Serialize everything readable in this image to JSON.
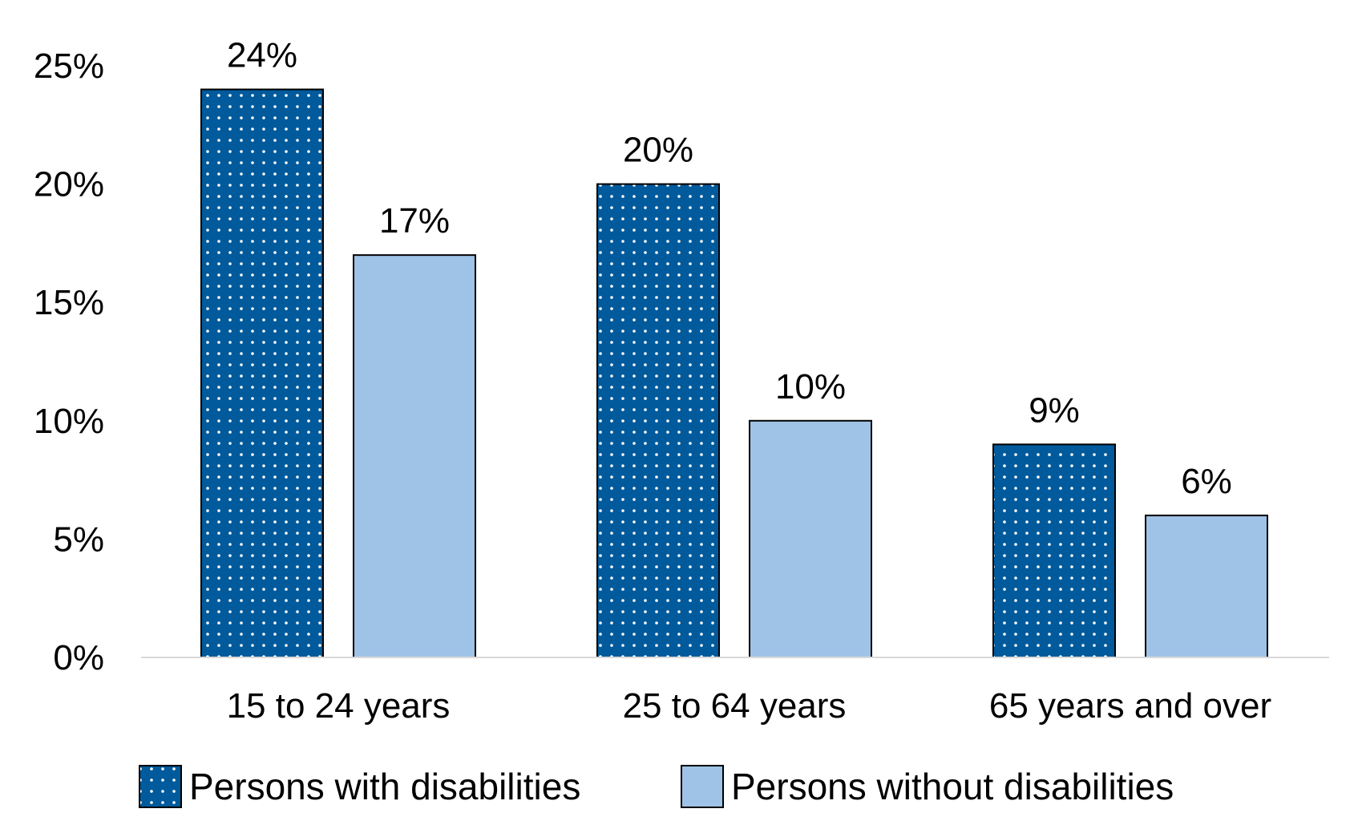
{
  "chart_data": {
    "type": "bar",
    "title": "",
    "xlabel": "",
    "ylabel": "",
    "ylim": [
      0,
      25
    ],
    "y_ticks": [
      0,
      5,
      10,
      15,
      20,
      25
    ],
    "y_tick_format": "percent",
    "grid": false,
    "legend_position": "bottom",
    "categories": [
      "15 to 24 years",
      "25 to 64 years",
      "65 years and over"
    ],
    "series": [
      {
        "name": "Persons with disabilities",
        "values": [
          24,
          20,
          9
        ],
        "labels": [
          "24%",
          "20%",
          "9%"
        ],
        "color": "#005a9c",
        "pattern": "white-dots"
      },
      {
        "name": "Persons without disabilities",
        "values": [
          17,
          10,
          6
        ],
        "labels": [
          "17%",
          "10%",
          "6%"
        ],
        "color": "#9fc3e7",
        "pattern": "solid"
      }
    ],
    "y_tick_labels": [
      "0%",
      "5%",
      "10%",
      "15%",
      "20%",
      "25%"
    ]
  }
}
